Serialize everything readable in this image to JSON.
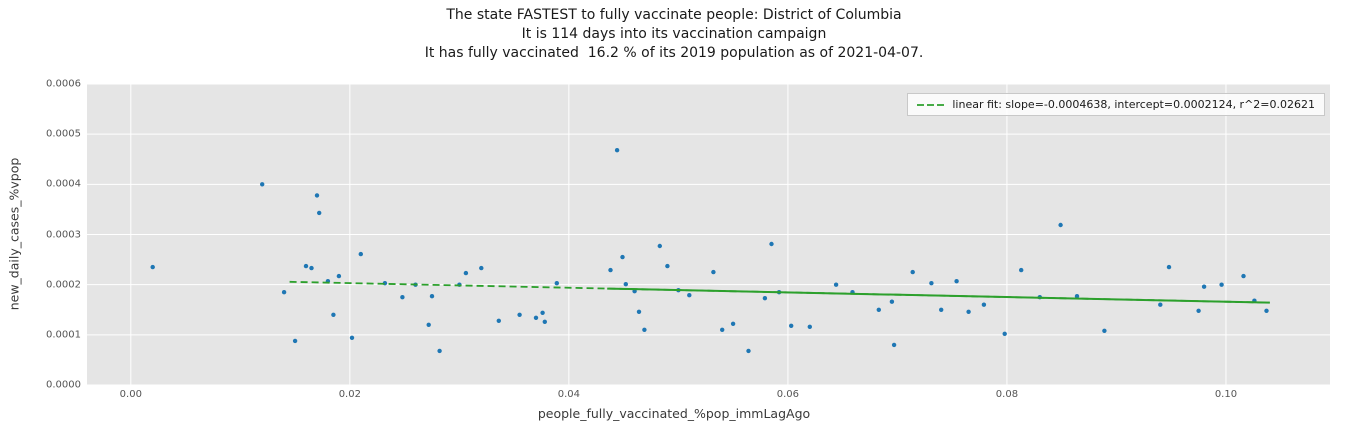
{
  "chart_data": {
    "type": "scatter",
    "title_lines": [
      "The state FASTEST to fully vaccinate people: District of Columbia",
      "It is 114 days into its vaccination campaign",
      "It has fully vaccinated  16.2 % of its 2019 population as of 2021-04-07."
    ],
    "xlabel": "people_fully_vaccinated_%pop_immLagAgo",
    "ylabel": "new_daily_cases_%vpop",
    "xlim": [
      -0.004,
      0.1095
    ],
    "ylim": [
      0,
      0.0006
    ],
    "x_ticks": [
      0.0,
      0.02,
      0.04,
      0.06,
      0.08,
      0.1
    ],
    "x_tick_labels": [
      "0.00",
      "0.02",
      "0.04",
      "0.06",
      "0.08",
      "0.10"
    ],
    "y_ticks": [
      0,
      0.0001,
      0.0002,
      0.0003,
      0.0004,
      0.0005,
      0.0006
    ],
    "y_tick_labels": [
      "0.0000",
      "0.0001",
      "0.0002",
      "0.0003",
      "0.0004",
      "0.0005",
      "0.0006"
    ],
    "legend_label": "linear fit: slope=-0.0004638, intercept=0.0002124, r^2=0.02621",
    "legend_position": "upper right",
    "grid": true,
    "fit_line": {
      "slope": -0.0004638,
      "intercept": 0.0002124,
      "r_squared": 0.02621,
      "dashed_x_range": [
        0.0145,
        0.104
      ],
      "solid_x_range": [
        0.0435,
        0.104
      ]
    },
    "colors": {
      "point": "#1f77b4",
      "line": "#2ca02c",
      "plot_bg": "#e5e5e5",
      "grid": "#ffffff"
    },
    "points": [
      [
        0.002,
        0.000235
      ],
      [
        0.012,
        0.0004
      ],
      [
        0.014,
        0.000185
      ],
      [
        0.015,
        8.8e-05
      ],
      [
        0.016,
        0.000237
      ],
      [
        0.0165,
        0.000233
      ],
      [
        0.017,
        0.000378
      ],
      [
        0.0172,
        0.000343
      ],
      [
        0.018,
        0.000207
      ],
      [
        0.0185,
        0.00014
      ],
      [
        0.019,
        0.000217
      ],
      [
        0.0202,
        9.4e-05
      ],
      [
        0.021,
        0.000261
      ],
      [
        0.0232,
        0.000203
      ],
      [
        0.0248,
        0.000175
      ],
      [
        0.026,
        0.0002
      ],
      [
        0.0272,
        0.00012
      ],
      [
        0.0275,
        0.000177
      ],
      [
        0.0282,
        6.8e-05
      ],
      [
        0.03,
        0.0002
      ],
      [
        0.0306,
        0.000223
      ],
      [
        0.032,
        0.000233
      ],
      [
        0.0336,
        0.000128
      ],
      [
        0.0355,
        0.00014
      ],
      [
        0.037,
        0.000134
      ],
      [
        0.0376,
        0.000144
      ],
      [
        0.0378,
        0.000126
      ],
      [
        0.0389,
        0.000203
      ],
      [
        0.0438,
        0.000229
      ],
      [
        0.0444,
        0.000468
      ],
      [
        0.0449,
        0.000255
      ],
      [
        0.0452,
        0.000201
      ],
      [
        0.046,
        0.000187
      ],
      [
        0.0464,
        0.000146
      ],
      [
        0.0469,
        0.00011
      ],
      [
        0.0483,
        0.000277
      ],
      [
        0.049,
        0.000237
      ],
      [
        0.05,
        0.000189
      ],
      [
        0.051,
        0.000179
      ],
      [
        0.0532,
        0.000225
      ],
      [
        0.054,
        0.00011
      ],
      [
        0.055,
        0.000122
      ],
      [
        0.0564,
        6.8e-05
      ],
      [
        0.0579,
        0.000173
      ],
      [
        0.0585,
        0.000281
      ],
      [
        0.0592,
        0.000185
      ],
      [
        0.0603,
        0.000118
      ],
      [
        0.062,
        0.000116
      ],
      [
        0.0644,
        0.0002
      ],
      [
        0.0659,
        0.000185
      ],
      [
        0.0683,
        0.00015
      ],
      [
        0.0695,
        0.000166
      ],
      [
        0.0697,
        8e-05
      ],
      [
        0.0714,
        0.000225
      ],
      [
        0.0731,
        0.000203
      ],
      [
        0.074,
        0.00015
      ],
      [
        0.0754,
        0.000207
      ],
      [
        0.0765,
        0.000146
      ],
      [
        0.0779,
        0.00016
      ],
      [
        0.0798,
        0.000102
      ],
      [
        0.0813,
        0.000229
      ],
      [
        0.083,
        0.000175
      ],
      [
        0.0849,
        0.000319
      ],
      [
        0.0864,
        0.000177
      ],
      [
        0.0889,
        0.000108
      ],
      [
        0.094,
        0.00016
      ],
      [
        0.0948,
        0.000235
      ],
      [
        0.0975,
        0.000148
      ],
      [
        0.098,
        0.000196
      ],
      [
        0.0996,
        0.0002
      ],
      [
        0.1016,
        0.000217
      ],
      [
        0.1026,
        0.000168
      ],
      [
        0.1037,
        0.000148
      ]
    ]
  }
}
